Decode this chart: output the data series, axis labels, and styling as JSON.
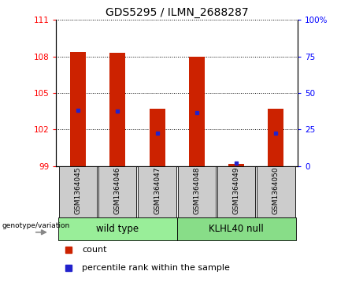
{
  "title": "GDS5295 / ILMN_2688287",
  "samples": [
    "GSM1364045",
    "GSM1364046",
    "GSM1364047",
    "GSM1364048",
    "GSM1364049",
    "GSM1364050"
  ],
  "bar_tops": [
    108.4,
    108.3,
    103.7,
    108.0,
    99.15,
    103.7
  ],
  "bar_base": 99,
  "blue_positions": [
    103.6,
    103.5,
    101.7,
    103.4,
    99.25,
    101.7
  ],
  "ylim_left": [
    99,
    111
  ],
  "ylim_right": [
    0,
    100
  ],
  "yticks_left": [
    99,
    102,
    105,
    108,
    111
  ],
  "yticks_right": [
    0,
    25,
    50,
    75,
    100
  ],
  "ytick_labels_right": [
    "0",
    "25",
    "50",
    "75",
    "100%"
  ],
  "bar_color": "#cc2200",
  "blue_color": "#2222cc",
  "group1_label": "wild type",
  "group2_label": "KLHL40 null",
  "group1_bg": "#99ee99",
  "group2_bg": "#88dd88",
  "sample_bg": "#cccccc",
  "legend_count_label": "count",
  "legend_pct_label": "percentile rank within the sample",
  "genotype_label": "genotype/variation"
}
